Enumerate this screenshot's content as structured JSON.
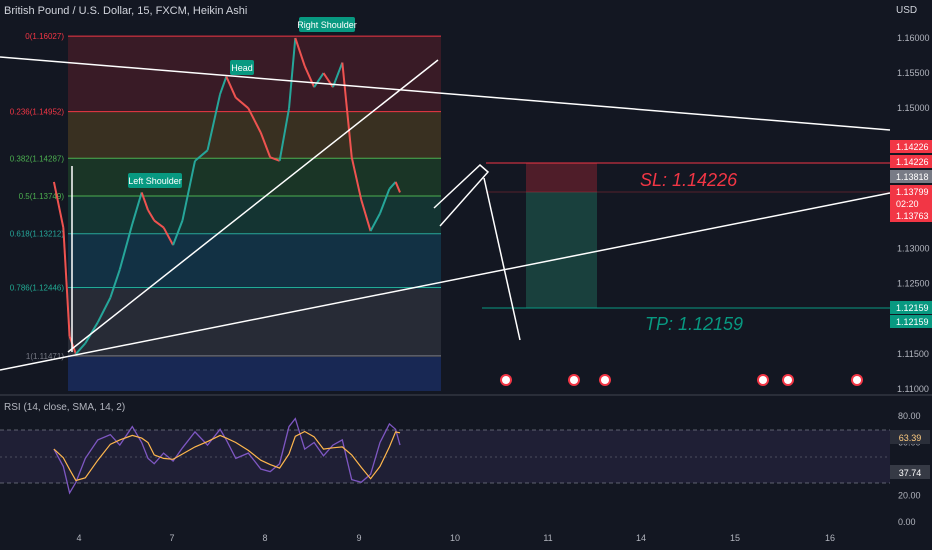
{
  "header": {
    "title": "British Pound / U.S. Dollar, 15, FXCM, Heikin Ashi",
    "currency": "USD"
  },
  "rsi_panel": {
    "label": "RSI (14, close, SMA, 14, 2)",
    "rsi_value": "63.39",
    "ma_value": "37.74",
    "ticks": [
      "80.00",
      "60.00",
      "40.00",
      "20.00",
      "0.00"
    ]
  },
  "fib_levels": [
    {
      "label": "0(1.16027)",
      "price": 1.16027,
      "color": "#f23645"
    },
    {
      "label": "0.236(1.14952)",
      "price": 1.14952,
      "color": "#f23645"
    },
    {
      "label": "0.382(1.14287)",
      "price": 1.14287,
      "color": "#4caf50"
    },
    {
      "label": "0.5(1.13749)",
      "price": 1.13749,
      "color": "#4caf50"
    },
    {
      "label": "0.618(1.13212)",
      "price": 1.13212,
      "color": "#26a69a"
    },
    {
      "label": "0.786(1.12446)",
      "price": 1.12446,
      "color": "#22ab94"
    },
    {
      "label": "1(1.11471)",
      "price": 1.11471,
      "color": "#787b86"
    }
  ],
  "annotations": {
    "left_shoulder": "Left Shoulder",
    "head": "Head",
    "right_shoulder": "Right Shoulder",
    "sl_text": "SL: 1.14226",
    "tp_text": "TP: 1.12159"
  },
  "price_axis": {
    "ticks": [
      "1.16000",
      "1.15500",
      "1.15000",
      "1.14500",
      "1.14000",
      "1.13500",
      "1.13000",
      "1.12500",
      "1.12000",
      "1.11500",
      "1.11000"
    ]
  },
  "price_badges": [
    {
      "text": "1.14226",
      "color": "#f23645"
    },
    {
      "text": "1.14226",
      "color": "#f23645"
    },
    {
      "text": "1.13818",
      "color": "#787b86"
    },
    {
      "text": "1.13799",
      "color": "#f23645"
    },
    {
      "text": "02:20",
      "color": "#f23645"
    },
    {
      "text": "1.13763",
      "color": "#f23645"
    },
    {
      "text": "1.12159",
      "color": "#089981"
    },
    {
      "text": "1.12159",
      "color": "#089981"
    }
  ],
  "time_axis": {
    "ticks": [
      "4",
      "7",
      "8",
      "9",
      "10",
      "11",
      "14",
      "15",
      "16"
    ]
  },
  "chart_data": {
    "type": "candlestick",
    "instrument": "GBP/USD",
    "timeframe": "15",
    "ylim": [
      1.1095,
      1.1635
    ],
    "price_ohlc_points": [
      [
        3.6,
        1.1395
      ],
      [
        3.75,
        1.133
      ],
      [
        3.85,
        1.1175
      ],
      [
        3.95,
        1.115
      ],
      [
        4.1,
        1.1165
      ],
      [
        4.3,
        1.1195
      ],
      [
        4.5,
        1.123
      ],
      [
        4.65,
        1.127
      ],
      [
        4.85,
        1.1335
      ],
      [
        5.0,
        1.138
      ],
      [
        5.1,
        1.1355
      ],
      [
        5.2,
        1.134
      ],
      [
        5.35,
        1.133
      ],
      [
        5.5,
        1.1305
      ],
      [
        5.65,
        1.134
      ],
      [
        5.85,
        1.1425
      ],
      [
        6.05,
        1.144
      ],
      [
        6.25,
        1.152
      ],
      [
        6.35,
        1.1545
      ],
      [
        6.5,
        1.1515
      ],
      [
        6.7,
        1.15
      ],
      [
        6.9,
        1.1465
      ],
      [
        7.05,
        1.143
      ],
      [
        7.2,
        1.1425
      ],
      [
        7.35,
        1.15
      ],
      [
        7.45,
        1.16
      ],
      [
        7.6,
        1.156
      ],
      [
        7.75,
        1.153
      ],
      [
        7.9,
        1.155
      ],
      [
        8.05,
        1.153
      ],
      [
        8.2,
        1.1565
      ],
      [
        8.35,
        1.143
      ],
      [
        8.5,
        1.137
      ],
      [
        8.65,
        1.1325
      ],
      [
        8.8,
        1.135
      ],
      [
        8.95,
        1.1385
      ],
      [
        9.05,
        1.1395
      ],
      [
        9.12,
        1.138
      ]
    ],
    "rsi_points": [
      [
        3.6,
        55
      ],
      [
        3.75,
        42
      ],
      [
        3.85,
        22
      ],
      [
        3.95,
        30
      ],
      [
        4.1,
        48
      ],
      [
        4.3,
        62
      ],
      [
        4.5,
        66
      ],
      [
        4.65,
        58
      ],
      [
        4.85,
        72
      ],
      [
        5.0,
        60
      ],
      [
        5.1,
        48
      ],
      [
        5.2,
        44
      ],
      [
        5.35,
        52
      ],
      [
        5.5,
        46
      ],
      [
        5.65,
        56
      ],
      [
        5.85,
        68
      ],
      [
        6.05,
        58
      ],
      [
        6.25,
        70
      ],
      [
        6.35,
        62
      ],
      [
        6.5,
        48
      ],
      [
        6.7,
        52
      ],
      [
        6.9,
        40
      ],
      [
        7.05,
        38
      ],
      [
        7.2,
        44
      ],
      [
        7.35,
        72
      ],
      [
        7.45,
        78
      ],
      [
        7.6,
        55
      ],
      [
        7.75,
        60
      ],
      [
        7.9,
        50
      ],
      [
        8.05,
        58
      ],
      [
        8.2,
        62
      ],
      [
        8.35,
        32
      ],
      [
        8.5,
        30
      ],
      [
        8.65,
        36
      ],
      [
        8.8,
        60
      ],
      [
        8.95,
        74
      ],
      [
        9.05,
        70
      ],
      [
        9.12,
        58
      ]
    ],
    "pattern": "head and shoulders",
    "stop_loss": 1.14226,
    "take_profit": 1.12159,
    "entry": 1.13799
  }
}
